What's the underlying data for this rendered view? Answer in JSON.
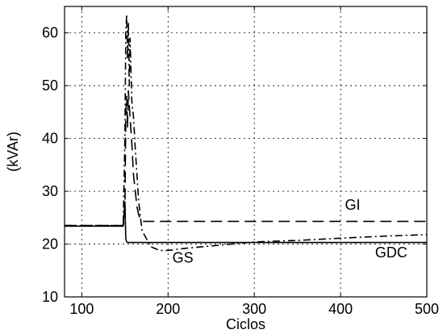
{
  "chart_data": {
    "type": "line",
    "title": "",
    "xlabel": "Ciclos",
    "ylabel": "(kVAr)",
    "xlim": [
      80,
      500
    ],
    "ylim": [
      10,
      65
    ],
    "xticks": [
      100,
      200,
      300,
      400,
      500
    ],
    "yticks": [
      10,
      20,
      30,
      40,
      50,
      60
    ],
    "grid": true,
    "legend": "none",
    "series": [
      {
        "name": "GI",
        "style": "dashed",
        "color": "#000000",
        "x": [
          80,
          148,
          150,
          151,
          152,
          153,
          154,
          156,
          158,
          160,
          162,
          164,
          166,
          168,
          170,
          500
        ],
        "y": [
          23.5,
          23.5,
          25,
          45,
          48,
          42,
          49,
          44,
          39,
          33,
          30,
          27,
          25.5,
          24.6,
          24.3,
          24.3
        ]
      },
      {
        "name": "GS",
        "style": "dashdot",
        "color": "#000000",
        "x": [
          80,
          148,
          150,
          151,
          152,
          153,
          154,
          155,
          156,
          158,
          160,
          162,
          164,
          166,
          168,
          170,
          180,
          190,
          200,
          210,
          220,
          240,
          260,
          280,
          300,
          350,
          400,
          450,
          500
        ],
        "y": [
          23.5,
          23.5,
          40,
          60,
          63.5,
          55,
          62,
          50,
          59,
          47,
          44,
          38,
          33,
          28,
          25,
          22.5,
          19.5,
          18.8,
          18.8,
          19.0,
          19.2,
          19.5,
          19.8,
          20.1,
          20.4,
          20.7,
          21.1,
          21.5,
          21.8
        ]
      },
      {
        "name": "GDC",
        "style": "solid",
        "color": "#000000",
        "x": [
          80,
          148,
          150,
          151,
          152,
          153,
          500
        ],
        "y": [
          23.4,
          23.4,
          28,
          21,
          20.4,
          20.3,
          20.3
        ]
      }
    ],
    "annotations": [
      {
        "text": "GI",
        "x": 405,
        "y": 26.5
      },
      {
        "text": "GS",
        "x": 205,
        "y": 16.5
      },
      {
        "text": "GDC",
        "x": 440,
        "y": 17.5
      }
    ]
  }
}
